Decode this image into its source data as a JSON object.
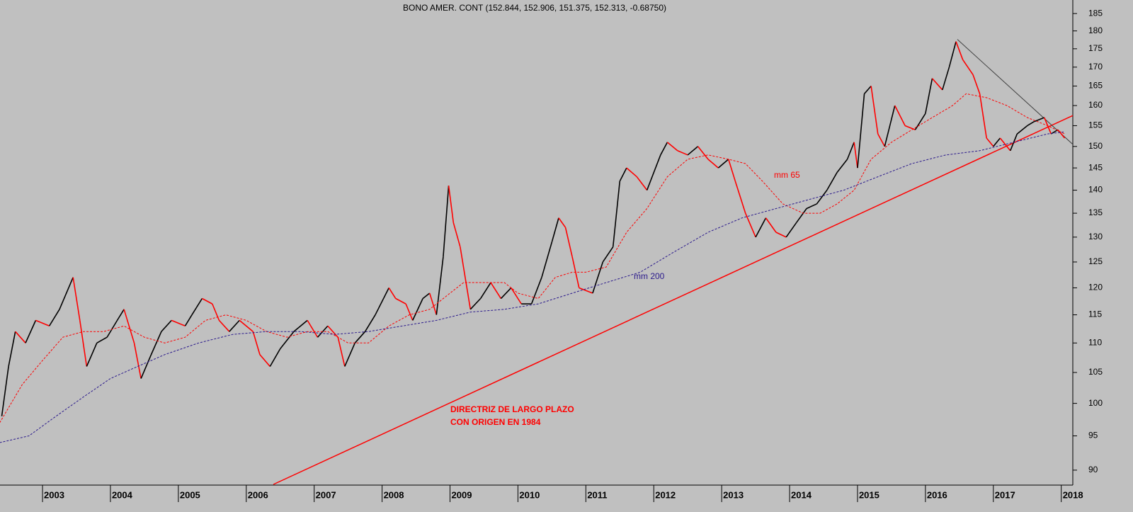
{
  "chart_data": {
    "type": "line",
    "title": "BONO AMER. CONT (152.844, 152.906, 151.375, 152.313, -0.68750)",
    "log_scale": true,
    "xlim": [
      2002.374,
      2018.17
    ],
    "xticks": [
      2003,
      2004,
      2005,
      2006,
      2007,
      2008,
      2009,
      2010,
      2011,
      2012,
      2013,
      2014,
      2015,
      2016,
      2017,
      2018
    ],
    "ylim": [
      88,
      189
    ],
    "yticks": [
      90,
      95,
      100,
      105,
      110,
      115,
      120,
      125,
      130,
      135,
      140,
      145,
      150,
      155,
      160,
      165,
      170,
      175,
      180,
      185
    ],
    "up_color": "#000000",
    "down_color": "#ff0000",
    "series": [
      {
        "name": "BONO AMER. CONT",
        "color": "#000000",
        "x": [
          2002.4,
          2002.5,
          2002.6,
          2002.75,
          2002.9,
          2003.1,
          2003.25,
          2003.45,
          2003.55,
          2003.65,
          2003.8,
          2003.95,
          2004.1,
          2004.2,
          2004.35,
          2004.45,
          2004.6,
          2004.75,
          2004.9,
          2005.1,
          2005.2,
          2005.35,
          2005.5,
          2005.6,
          2005.75,
          2005.9,
          2006.1,
          2006.2,
          2006.35,
          2006.5,
          2006.7,
          2006.9,
          2007.05,
          2007.2,
          2007.35,
          2007.45,
          2007.6,
          2007.75,
          2007.9,
          2008.1,
          2008.2,
          2008.35,
          2008.45,
          2008.6,
          2008.7,
          2008.8,
          2008.9,
          2008.98,
          2009.05,
          2009.15,
          2009.3,
          2009.45,
          2009.6,
          2009.75,
          2009.9,
          2010.05,
          2010.2,
          2010.35,
          2010.5,
          2010.6,
          2010.7,
          2010.8,
          2010.9,
          2011.1,
          2011.25,
          2011.4,
          2011.5,
          2011.6,
          2011.75,
          2011.9,
          2012.1,
          2012.2,
          2012.35,
          2012.5,
          2012.65,
          2012.8,
          2012.95,
          2013.1,
          2013.2,
          2013.35,
          2013.5,
          2013.65,
          2013.8,
          2013.95,
          2014.1,
          2014.25,
          2014.4,
          2014.55,
          2014.7,
          2014.85,
          2014.95,
          2015.0,
          2015.1,
          2015.2,
          2015.3,
          2015.4,
          2015.55,
          2015.7,
          2015.85,
          2016.0,
          2016.1,
          2016.25,
          2016.35,
          2016.45,
          2016.55,
          2016.7,
          2016.8,
          2016.9,
          2017.0,
          2017.1,
          2017.25,
          2017.35,
          2017.5,
          2017.6,
          2017.75,
          2017.85,
          2017.95,
          2018.05
        ],
        "values": [
          98,
          106,
          112,
          110,
          114,
          113,
          116,
          122,
          114,
          106,
          110,
          111,
          114,
          116,
          110,
          104,
          108,
          112,
          114,
          113,
          115,
          118,
          117,
          114,
          112,
          114,
          112,
          108,
          106,
          109,
          112,
          114,
          111,
          113,
          111,
          106,
          110,
          112,
          115,
          120,
          118,
          117,
          114,
          118,
          119,
          115,
          126,
          141,
          133,
          128,
          116,
          118,
          121,
          118,
          120,
          117,
          117,
          122,
          129,
          134,
          132,
          126,
          120,
          119,
          125,
          128,
          142,
          145,
          143,
          140,
          148,
          151,
          149,
          148,
          150,
          147,
          145,
          147,
          142,
          135,
          130,
          134,
          131,
          130,
          133,
          136,
          137,
          140,
          144,
          147,
          151,
          145,
          163,
          165,
          153,
          150,
          160,
          155,
          154,
          158,
          167,
          164,
          170,
          177,
          172,
          168,
          163,
          152,
          150,
          152,
          149,
          153,
          155,
          156,
          157,
          153,
          154,
          152
        ]
      },
      {
        "name": "mm 65",
        "color": "#ff0000",
        "x": [
          2002.37,
          2002.7,
          2003.0,
          2003.3,
          2003.6,
          2003.9,
          2004.2,
          2004.5,
          2004.8,
          2005.1,
          2005.4,
          2005.7,
          2006.0,
          2006.3,
          2006.6,
          2006.9,
          2007.2,
          2007.5,
          2007.8,
          2008.1,
          2008.4,
          2008.7,
          2009.0,
          2009.2,
          2009.5,
          2009.8,
          2010.0,
          2010.3,
          2010.55,
          2010.8,
          2011.0,
          2011.3,
          2011.6,
          2011.9,
          2012.2,
          2012.5,
          2012.8,
          2013.1,
          2013.35,
          2013.6,
          2013.9,
          2014.2,
          2014.45,
          2014.7,
          2014.95,
          2015.2,
          2015.5,
          2015.8,
          2016.1,
          2016.4,
          2016.6,
          2016.9,
          2017.2,
          2017.5,
          2017.8,
          2018.05
        ],
        "values": [
          97,
          103,
          107,
          111,
          112,
          112,
          113,
          111,
          110,
          111,
          114,
          115,
          114,
          112,
          111,
          112,
          112,
          110,
          110,
          113,
          115,
          116,
          119,
          121,
          121,
          121,
          119,
          118,
          122,
          123,
          123,
          124,
          131,
          136,
          143,
          147,
          148,
          147,
          146,
          142,
          137,
          135,
          135,
          137,
          140,
          147,
          151,
          154,
          157,
          160,
          163,
          162,
          160,
          157,
          155,
          153
        ]
      },
      {
        "name": "mm 200",
        "color": "#2b1a8c",
        "x": [
          2002.37,
          2002.8,
          2003.2,
          2003.6,
          2004.0,
          2004.4,
          2004.8,
          2005.3,
          2005.8,
          2006.3,
          2006.8,
          2007.3,
          2007.8,
          2008.3,
          2008.8,
          2009.3,
          2009.8,
          2010.3,
          2010.8,
          2011.3,
          2011.8,
          2012.3,
          2012.8,
          2013.3,
          2013.8,
          2014.3,
          2014.8,
          2015.3,
          2015.8,
          2016.3,
          2016.8,
          2017.3,
          2017.8,
          2018.05
        ],
        "values": [
          94,
          95,
          98,
          101,
          104,
          106,
          108,
          110,
          111.5,
          112,
          112,
          111.5,
          112,
          113,
          114,
          115.5,
          116,
          117,
          119,
          121,
          123,
          127,
          131,
          134,
          136,
          138,
          140,
          143,
          146,
          148,
          149,
          151,
          153,
          153.5
        ]
      }
    ],
    "trendlines": [
      {
        "color": "#ff0000",
        "x": [
          2006.4,
          2018.17
        ],
        "values": [
          88,
          157.5
        ]
      },
      {
        "color": "#404040",
        "x": [
          2016.47,
          2018.17
        ],
        "values": [
          177.6,
          150.5
        ]
      }
    ],
    "annotations": [
      {
        "text": "mm 65",
        "color": "#ff0000"
      },
      {
        "text": "mm 200",
        "color": "#2b1a8c"
      },
      {
        "text": "DIRECTRIZ DE LARGO PLAZO",
        "color": "#ff0000"
      },
      {
        "text": "CON ORIGEN EN 1984",
        "color": "#ff0000"
      }
    ]
  }
}
